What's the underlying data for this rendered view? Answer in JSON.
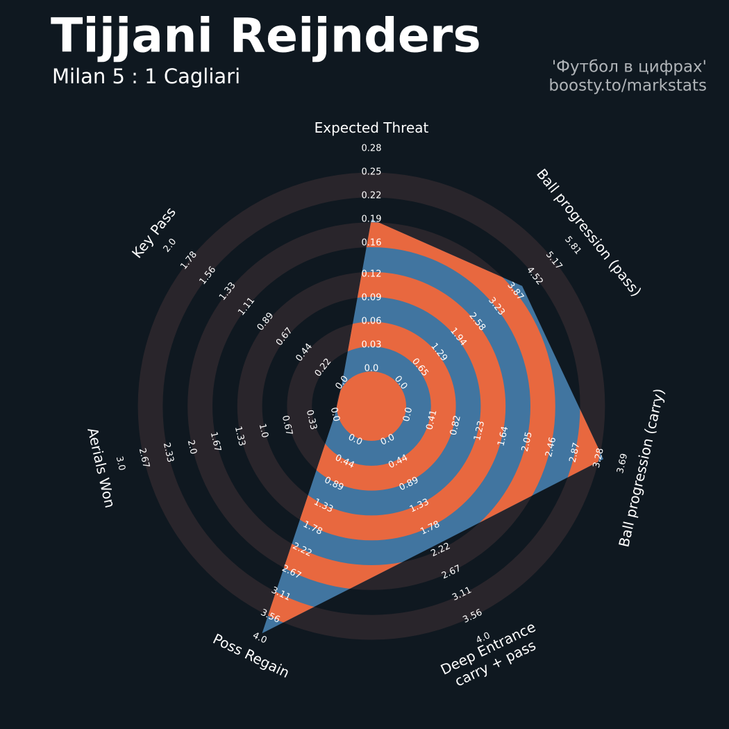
{
  "chart_data": {
    "type": "radar",
    "title": "Tijjani Reijnders",
    "subtitle": "Milan 5 : 1 Cagliari",
    "credits": [
      "'Футбол в цифрах'",
      "boosty.to/markstats"
    ],
    "categories": [
      "Expected Threat",
      "Ball progression (pass)",
      "Ball progression (carry)",
      "Deep Entrance\ncarry + pass",
      "Poss Regain",
      "Aerials Won",
      "Key Pass"
    ],
    "values": [
      0.19,
      4.1,
      3.36,
      2.1,
      3.9,
      0,
      0
    ],
    "color": "#4175a0",
    "ring_color": "#e8683f",
    "rlims": [
      [
        0,
        0.28
      ],
      [
        0,
        5.81
      ],
      [
        0,
        3.69
      ],
      [
        0,
        4
      ],
      [
        0,
        4
      ],
      [
        0,
        3
      ],
      [
        0,
        2
      ]
    ],
    "rticks": [
      [
        {
          "value": 0,
          "label": "0.0"
        },
        0.03,
        0.06,
        0.09,
        0.12,
        0.16,
        0.19,
        0.22,
        0.25,
        0.28
      ],
      [
        {
          "value": 0,
          "label": "0.0"
        },
        0.65,
        1.29,
        1.94,
        2.58,
        3.23,
        3.87,
        4.52,
        5.17,
        5.81
      ],
      [
        {
          "value": 0,
          "label": "0.0"
        },
        0.41,
        0.82,
        1.23,
        1.64,
        2.05,
        2.46,
        2.87,
        3.28,
        3.69
      ],
      [
        {
          "value": 0,
          "label": "0.0"
        },
        0.44,
        0.89,
        1.33,
        1.78,
        2.22,
        2.67,
        3.11,
        3.56,
        {
          "value": 4,
          "label": "4.0"
        }
      ],
      [
        {
          "value": 0,
          "label": "0.0"
        },
        0.44,
        0.89,
        1.33,
        1.78,
        2.22,
        2.67,
        3.11,
        3.56,
        {
          "value": 4,
          "label": "4.0"
        }
      ],
      [
        {
          "value": 0,
          "label": "0.0"
        },
        0.33,
        0.67,
        {
          "value": 1,
          "label": "1.0"
        },
        1.33,
        1.67,
        {
          "value": 2,
          "label": "2.0"
        },
        2.33,
        2.67,
        {
          "value": 3,
          "label": "3.0"
        }
      ],
      [
        {
          "value": 0,
          "label": "0.0"
        },
        0.22,
        0.44,
        0.67,
        0.89,
        1.11,
        1.33,
        1.56,
        1.78,
        {
          "value": 2,
          "label": "2.0"
        }
      ]
    ]
  }
}
